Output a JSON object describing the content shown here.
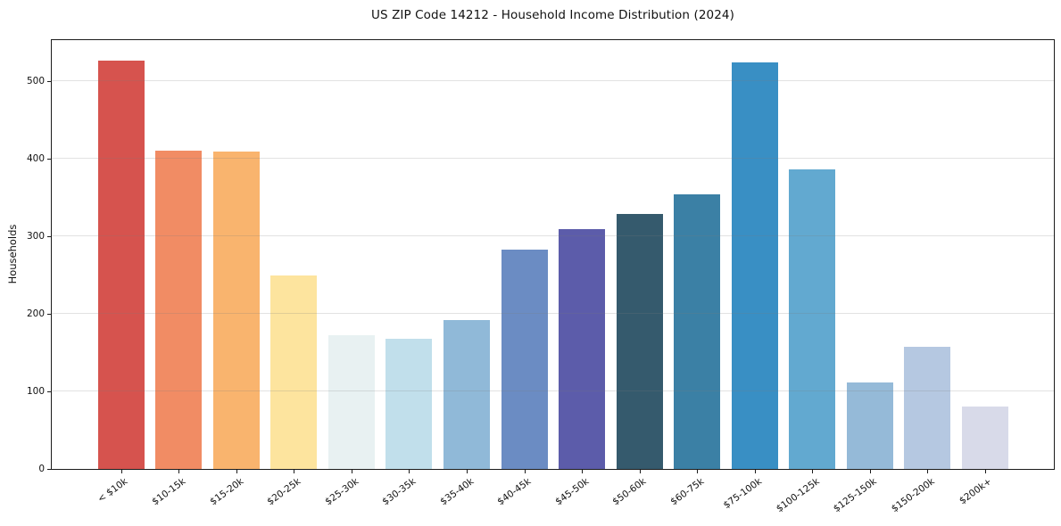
{
  "chart_data": {
    "type": "bar",
    "title": "US ZIP Code 14212 - Household Income Distribution (2024)",
    "xlabel": "",
    "ylabel": "Households",
    "categories": [
      "< $10k",
      "$10-15k",
      "$15-20k",
      "$20-25k",
      "$25-30k",
      "$30-35k",
      "$35-40k",
      "$40-45k",
      "$45-50k",
      "$50-60k",
      "$60-75k",
      "$75-100k",
      "$100-125k",
      "$125-150k",
      "$150-200k",
      "$200k+"
    ],
    "values": [
      527,
      410,
      409,
      250,
      173,
      168,
      192,
      283,
      309,
      329,
      354,
      524,
      386,
      111,
      157,
      81
    ],
    "bar_colors": [
      "#d6534e",
      "#f18c64",
      "#f9b46e",
      "#fde49e",
      "#e8f1f2",
      "#c1dfeb",
      "#90b9d8",
      "#6b8cc3",
      "#5c5caa",
      "#355a6d",
      "#3b80a5",
      "#398fc4",
      "#62a9d0",
      "#95bad8",
      "#b5c8e1",
      "#d8dae9"
    ],
    "yticks": [
      0,
      100,
      200,
      300,
      400,
      500
    ],
    "ylim": [
      0,
      553
    ],
    "grid": "horizontal",
    "grid_color": "#e6e6e6",
    "legend": "none",
    "background": "#ffffff",
    "x_tick_rotation_deg": 36
  }
}
